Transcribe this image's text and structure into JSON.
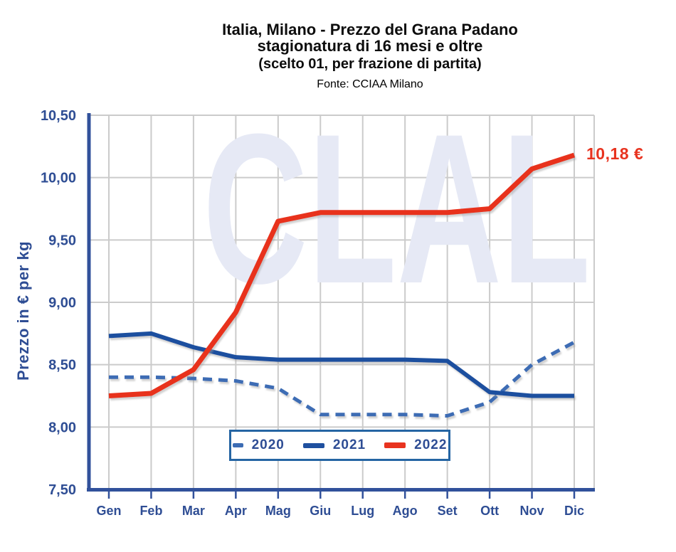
{
  "header": {
    "title_line1": "Italia, Milano - Prezzo del Grana Padano",
    "title_line2": "stagionatura di 16 mesi e oltre",
    "subtitle": "(scelto 01, per frazione di partita)",
    "source": "Fonte: CCIAA Milano"
  },
  "watermark": {
    "text": "CLAL"
  },
  "chart_data": {
    "type": "line",
    "title": "Italia, Milano - Prezzo del Grana Padano stagionatura di 16 mesi e oltre (scelto 01, per frazione di partita)",
    "source": "Fonte: CCIAA Milano",
    "xlabel": "",
    "ylabel": "Prezzo in € per kg",
    "categories": [
      "Gen",
      "Feb",
      "Mar",
      "Apr",
      "Mag",
      "Giu",
      "Lug",
      "Ago",
      "Set",
      "Ott",
      "Nov",
      "Dic"
    ],
    "series": [
      {
        "name": "2020",
        "style": "dashed",
        "color": "#3C6CB4",
        "line_width": 5,
        "values": [
          8.4,
          8.4,
          8.39,
          8.37,
          8.31,
          8.1,
          8.1,
          8.1,
          8.09,
          8.2,
          8.5,
          8.68
        ]
      },
      {
        "name": "2021",
        "style": "solid",
        "color": "#1F509F",
        "line_width": 6,
        "values": [
          8.73,
          8.75,
          8.64,
          8.56,
          8.54,
          8.54,
          8.54,
          8.54,
          8.53,
          8.28,
          8.25,
          8.25
        ]
      },
      {
        "name": "2022",
        "style": "solid",
        "color": "#E8331F",
        "line_width": 7,
        "values": [
          8.25,
          8.27,
          8.46,
          8.92,
          9.65,
          9.72,
          9.72,
          9.72,
          9.72,
          9.75,
          10.07,
          10.18
        ]
      }
    ],
    "ylim": [
      7.5,
      10.5
    ],
    "yticks": {
      "values": [
        7.5,
        8.0,
        8.5,
        9.0,
        9.5,
        10.0,
        10.5
      ],
      "labels": [
        "7,50",
        "8,00",
        "8,50",
        "9,00",
        "9,50",
        "10,00",
        "10,50"
      ]
    },
    "grid": true,
    "legend_position": "bottom-center",
    "annotation": {
      "text": "10,18 €",
      "series": "2022",
      "category": "Dic",
      "value": 10.18,
      "color": "#E8331F"
    },
    "colors": {
      "axis": "#31519B",
      "grid": "#CBCBCB",
      "tick_text": "#2E4D94",
      "watermark": "#E6E9F5"
    }
  }
}
